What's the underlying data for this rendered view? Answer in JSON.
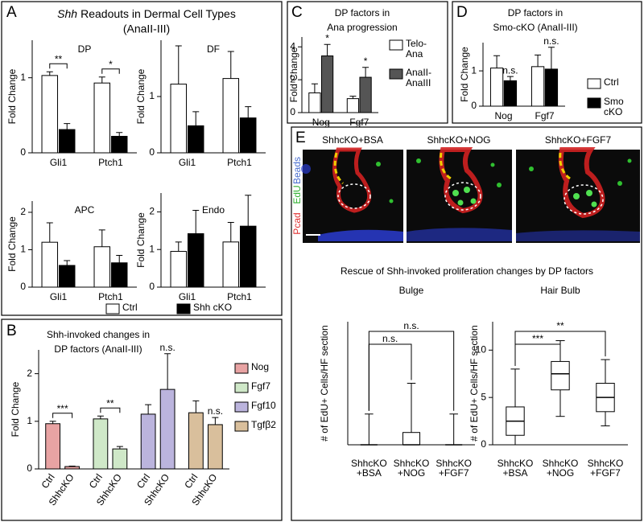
{
  "figure": {
    "panel_letters": [
      "A",
      "B",
      "C",
      "D",
      "E"
    ],
    "panel_a": {
      "gene": "Shh",
      "title": "Readouts in Dermal Cell Types",
      "subtitle": "(AnaII-III)"
    },
    "panel_e": {
      "images": [
        "ShhcKO+BSA",
        "ShhcKO+NOG",
        "ShhcKO+FGF7"
      ],
      "channels": [
        "Beads",
        "EdU",
        "Pcad"
      ],
      "title": "Rescue of Shh-invoked proliferation changes by DP factors"
    }
  },
  "chart_data": [
    {
      "type": "bar",
      "title": "DP",
      "ylabel": "Fold Change",
      "categories": [
        "Gli1",
        "Ptch1"
      ],
      "series": [
        {
          "name": "Ctrl",
          "color": "#ffffff",
          "values": [
            1.03,
            0.93
          ],
          "errors": [
            0.05,
            0.08
          ]
        },
        {
          "name": "Shh cKO",
          "color": "#000000",
          "values": [
            0.31,
            0.22
          ],
          "errors": [
            0.08,
            0.05
          ]
        }
      ],
      "ylim": [
        0,
        1.5
      ],
      "yticks": [
        0,
        1
      ],
      "annotations": [
        {
          "label": "**",
          "category": "Gli1",
          "bracket": true
        },
        {
          "label": "*",
          "category": "Ptch1",
          "bracket": true
        }
      ]
    },
    {
      "type": "bar",
      "title": "DF",
      "ylabel": "Fold Change",
      "categories": [
        "Gli1",
        "Ptch1"
      ],
      "series": [
        {
          "name": "Ctrl",
          "color": "#ffffff",
          "values": [
            1.22,
            1.32
          ],
          "errors": [
            0.68,
            0.48
          ]
        },
        {
          "name": "Shh cKO",
          "color": "#000000",
          "values": [
            0.48,
            0.62
          ],
          "errors": [
            0.25,
            0.2
          ]
        }
      ],
      "ylim": [
        0,
        2
      ],
      "yticks": [
        0,
        1
      ]
    },
    {
      "type": "bar",
      "title": "APC",
      "ylabel": "Fold Change",
      "categories": [
        "Gli1",
        "Ptch1"
      ],
      "series": [
        {
          "name": "Ctrl",
          "color": "#ffffff",
          "values": [
            1.2,
            1.08
          ],
          "errors": [
            0.52,
            0.45
          ]
        },
        {
          "name": "Shh cKO",
          "color": "#000000",
          "values": [
            0.58,
            0.65
          ],
          "errors": [
            0.13,
            0.2
          ]
        }
      ],
      "ylim": [
        0,
        2.3
      ],
      "yticks": [
        0,
        1,
        2
      ]
    },
    {
      "type": "bar",
      "title": "Endo",
      "ylabel": "Fold Change",
      "categories": [
        "Gli1",
        "Ptch1"
      ],
      "series": [
        {
          "name": "Ctrl",
          "color": "#ffffff",
          "values": [
            0.95,
            1.2
          ],
          "errors": [
            0.25,
            0.52
          ]
        },
        {
          "name": "Shh cKO",
          "color": "#000000",
          "values": [
            1.42,
            1.62
          ],
          "errors": [
            0.62,
            0.82
          ]
        }
      ],
      "ylim": [
        0,
        2.5
      ],
      "yticks": [
        0,
        1,
        2
      ],
      "legend": "bottom"
    },
    {
      "type": "bar",
      "title": [
        "Shh-invoked changes in",
        "DP factors (AnaII-III)"
      ],
      "ylabel": "Fold Change",
      "categories": [
        "Ctrl",
        "ShhcKO"
      ],
      "group_by": "series",
      "series": [
        {
          "name": "Nog",
          "color": "#e8a3a3",
          "values": [
            0.95,
            0.05
          ],
          "errors": [
            0.05,
            0.01
          ]
        },
        {
          "name": "Fgf7",
          "color": "#cfe8c8",
          "values": [
            1.05,
            0.42
          ],
          "errors": [
            0.06,
            0.05
          ]
        },
        {
          "name": "Fgf10",
          "color": "#bbb4dd",
          "values": [
            1.15,
            1.67
          ],
          "errors": [
            0.2,
            0.75
          ]
        },
        {
          "name": "Tgfβ2",
          "color": "#d9bf9c",
          "values": [
            1.18,
            0.93
          ],
          "errors": [
            0.25,
            0.15
          ]
        }
      ],
      "ylim": [
        0,
        2.5
      ],
      "yticks": [
        0,
        1,
        2
      ],
      "legend": "right",
      "annotations": [
        {
          "label": "***",
          "series": "Nog",
          "bracket": true
        },
        {
          "label": "**",
          "series": "Fgf7",
          "bracket": true
        },
        {
          "label": "n.s.",
          "series": "Fgf10",
          "category": "ShhcKO",
          "bracket": false
        },
        {
          "label": "n.s.",
          "series": "Tgfβ2",
          "category": "ShhcKO",
          "bracket": false
        }
      ]
    },
    {
      "type": "bar",
      "title": [
        "DP factors in",
        "Ana progression"
      ],
      "ylabel": "Fold Change",
      "categories": [
        "Nog",
        "Fgf7"
      ],
      "series": [
        {
          "name": "Telo-Ana",
          "color": "#ffffff",
          "values": [
            1.2,
            0.85
          ],
          "errors": [
            0.55,
            0.15
          ]
        },
        {
          "name": "AnaII-AnaIII",
          "color": "#555555",
          "values": [
            3.45,
            2.15
          ],
          "errors": [
            0.7,
            0.6
          ]
        }
      ],
      "ylim": [
        0,
        4.6
      ],
      "yticks": [
        0,
        2,
        4
      ],
      "legend": "right",
      "annotations": [
        {
          "label": "*",
          "category": "Nog",
          "series": "AnaII-AnaIII",
          "bracket": false
        },
        {
          "label": "*",
          "category": "Fgf7",
          "series": "AnaII-AnaIII",
          "bracket": false
        }
      ]
    },
    {
      "type": "bar",
      "title": [
        "DP factors in",
        "Smo-cKO (AnaII-III)"
      ],
      "ylabel": "Fold Change",
      "categories": [
        "Nog",
        "Fgf7"
      ],
      "series": [
        {
          "name": "Ctrl",
          "color": "#ffffff",
          "values": [
            1.08,
            1.12
          ],
          "errors": [
            0.35,
            0.33
          ]
        },
        {
          "name": "Smo cKO",
          "color": "#000000",
          "values": [
            0.72,
            1.05
          ],
          "errors": [
            0.12,
            0.62
          ]
        }
      ],
      "ylim": [
        0,
        1.8
      ],
      "yticks": [
        0,
        1
      ],
      "legend": "right",
      "annotations": [
        {
          "label": "n.s.",
          "category": "Nog",
          "series": "Smo cKO",
          "bracket": false
        },
        {
          "label": "n.s.",
          "category": "Fgf7",
          "series": "Smo cKO",
          "bracket": false
        }
      ]
    },
    {
      "type": "box",
      "title": "Bulge",
      "ylabel": "# of EdU+ Cells/HF section",
      "categories": [
        [
          "ShhcKO",
          "+BSA"
        ],
        [
          "ShhcKO",
          "+NOG"
        ],
        [
          "ShhcKO",
          "+FGF7"
        ]
      ],
      "min": [
        0,
        0,
        0
      ],
      "q1": [
        0,
        0,
        0
      ],
      "median": [
        0,
        0,
        0
      ],
      "q3": [
        0,
        0.6,
        0
      ],
      "max": [
        1.5,
        3,
        1.5
      ],
      "ylim": [
        0,
        6
      ],
      "annotations": [
        {
          "label": "n.s.",
          "from": [
            "ShhcKO",
            "+BSA"
          ],
          "to": [
            "ShhcKO",
            "+NOG"
          ],
          "bracket": true
        },
        {
          "label": "n.s.",
          "from": [
            "ShhcKO",
            "+BSA"
          ],
          "to": [
            "ShhcKO",
            "+FGF7"
          ],
          "bracket": true
        }
      ]
    },
    {
      "type": "box",
      "title": "Hair Bulb",
      "ylabel": "# of EdU+ Cells/HF section",
      "categories": [
        [
          "ShhcKO",
          "+BSA"
        ],
        [
          "ShhcKO",
          "+NOG"
        ],
        [
          "ShhcKO",
          "+FGF7"
        ]
      ],
      "min": [
        0,
        3,
        2
      ],
      "q1": [
        1,
        5.8,
        3.5
      ],
      "median": [
        2.5,
        7.5,
        5
      ],
      "q3": [
        4,
        8.8,
        6.5
      ],
      "max": [
        8,
        11,
        9
      ],
      "ylim": [
        0,
        13
      ],
      "yticks": [
        0,
        5,
        10
      ],
      "annotations": [
        {
          "label": "***",
          "from": [
            "ShhcKO",
            "+BSA"
          ],
          "to": [
            "ShhcKO",
            "+NOG"
          ],
          "bracket": true
        },
        {
          "label": "**",
          "from": [
            "ShhcKO",
            "+BSA"
          ],
          "to": [
            "ShhcKO",
            "+FGF7"
          ],
          "bracket": true
        }
      ]
    }
  ]
}
